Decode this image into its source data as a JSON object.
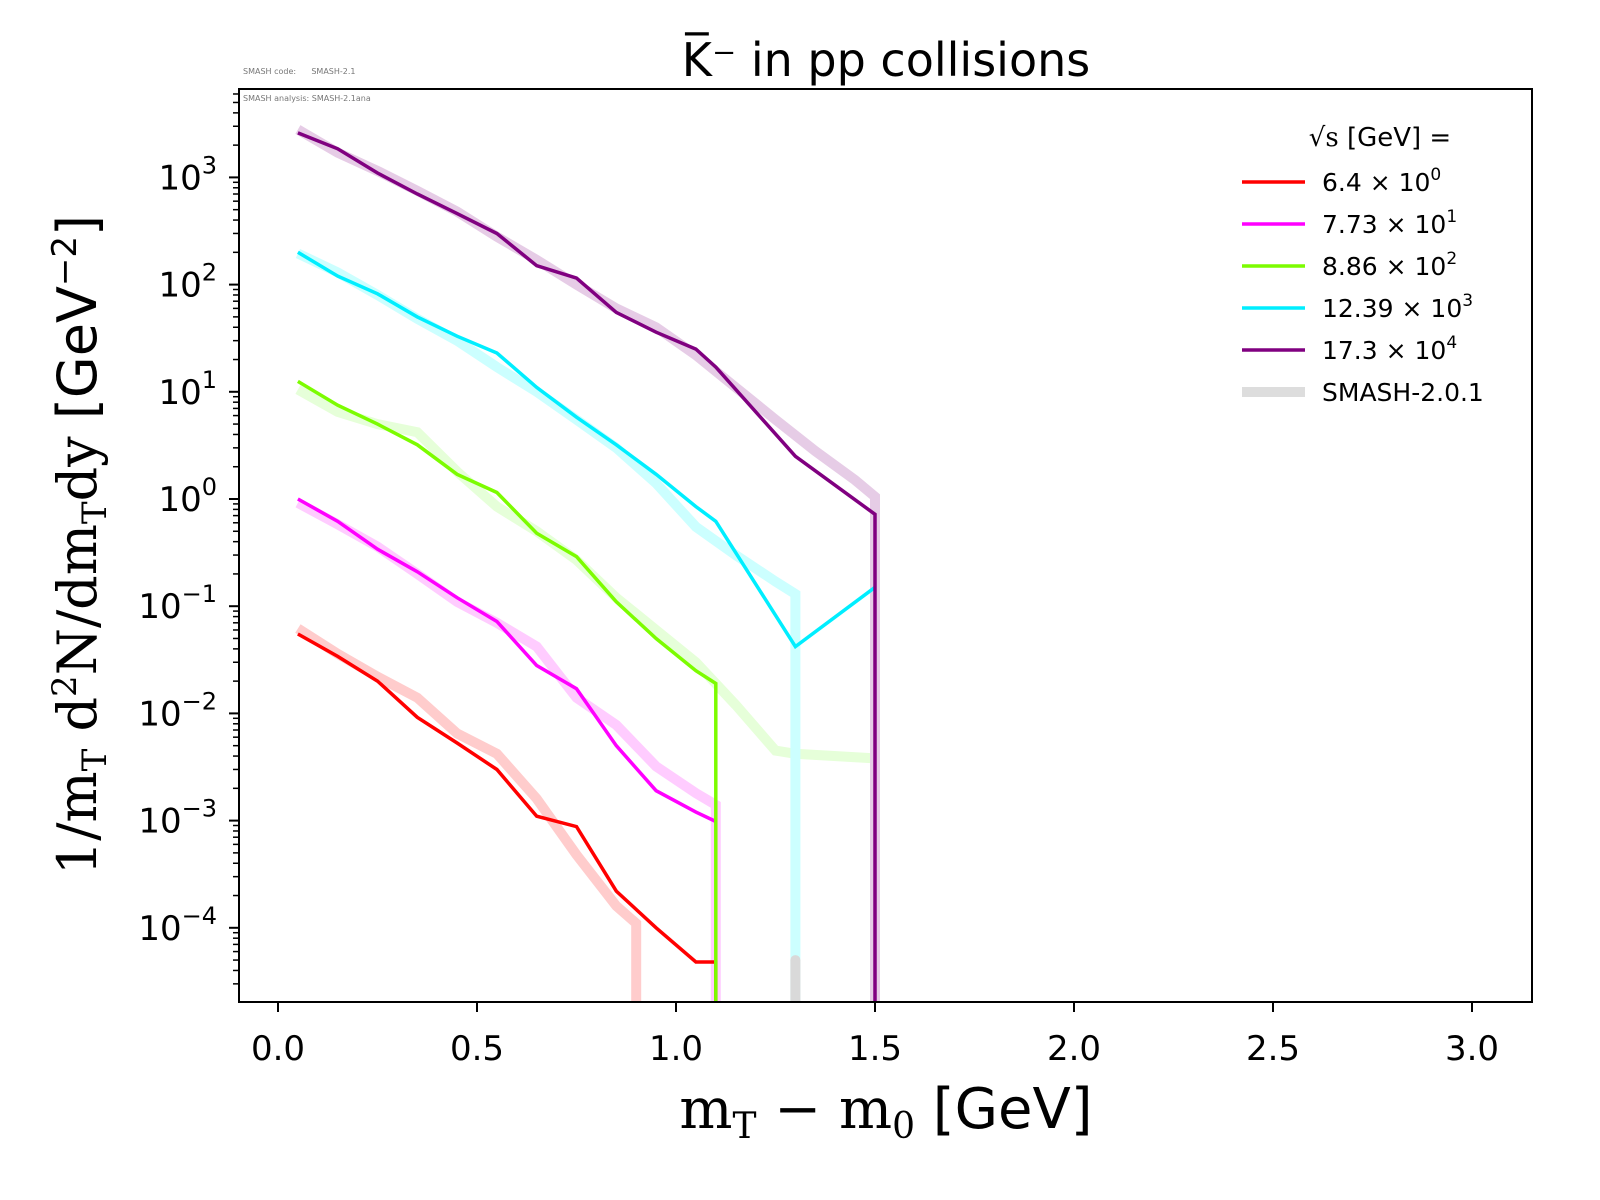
{
  "meta": {
    "code_label": "SMASH code:",
    "code_value": "SMASH-2.1",
    "analysis_label": "SMASH analysis:",
    "analysis_value": "SMASH-2.1ana"
  },
  "chart_data": {
    "type": "line",
    "title": "K̅⁻ in pp collisions",
    "xlabel": "m_T − m_0 [GeV]",
    "xlabel_parts": {
      "m1": "m",
      "sub1": "T",
      "minus": " − ",
      "m2": "m",
      "sub2": "0",
      "unit": " [GeV]"
    },
    "ylabel": "1/m_T d²N/dm_Tdy [GeV⁻²]",
    "ylabel_parts": {
      "a": "1/m",
      "sub_a": "T",
      "b": " d",
      "sup_b": "2",
      "c": "N/dm",
      "sub_c": "T",
      "d": "dy",
      "unit": " [GeV",
      "sup_unit": "−2",
      "close": "]"
    },
    "xlim": [
      -0.1,
      3.15
    ],
    "ylim_log10": [
      -4.75,
      3.8
    ],
    "yscale": "log",
    "grid": false,
    "x_ticks": [
      {
        "value": 0.0,
        "label": "0.0"
      },
      {
        "value": 0.5,
        "label": "0.5"
      },
      {
        "value": 1.0,
        "label": "1.0"
      },
      {
        "value": 1.5,
        "label": "1.5"
      },
      {
        "value": 2.0,
        "label": "2.0"
      },
      {
        "value": 2.5,
        "label": "2.5"
      },
      {
        "value": 3.0,
        "label": "3.0"
      }
    ],
    "y_ticks": [
      {
        "exp": 3,
        "base": "10",
        "sup": "3"
      },
      {
        "exp": 2,
        "base": "10",
        "sup": "2"
      },
      {
        "exp": 1,
        "base": "10",
        "sup": "1"
      },
      {
        "exp": 0,
        "base": "10",
        "sup": "0"
      },
      {
        "exp": -1,
        "base": "10",
        "sup": "−1"
      },
      {
        "exp": -2,
        "base": "10",
        "sup": "−2"
      },
      {
        "exp": -3,
        "base": "10",
        "sup": "−3"
      },
      {
        "exp": -4,
        "base": "10",
        "sup": "−4"
      }
    ],
    "legend": {
      "position": "top-right",
      "title_root": "√s",
      "title_rest": " [GeV] =",
      "entries": [
        {
          "name": "6.4 × 10",
          "sup": "0",
          "color": "#ff0000"
        },
        {
          "name": "7.73 × 10",
          "sup": "1",
          "color": "#ff00ff"
        },
        {
          "name": "8.86 × 10",
          "sup": "2",
          "color": "#7cfc00"
        },
        {
          "name": "12.39 × 10",
          "sup": "3",
          "color": "#00eeff"
        },
        {
          "name": "17.3 × 10",
          "sup": "4",
          "color": "#800080"
        },
        {
          "name": "SMASH-2.0.1",
          "sup": "",
          "color": "#dddddd"
        }
      ]
    },
    "series": [
      {
        "name": "6.4 × 10^0",
        "color": "#ff0000",
        "x": [
          0.05,
          0.15,
          0.25,
          0.35,
          0.45,
          0.55,
          0.65,
          0.75,
          0.85,
          0.95,
          1.05,
          1.1,
          1.1
        ],
        "y": [
          0.055,
          0.034,
          0.02,
          0.0092,
          0.0053,
          0.003,
          0.0011,
          0.00088,
          0.00022,
          0.0001,
          4.8e-05,
          4.8e-05,
          1.7e-05
        ],
        "reference": {
          "color": "#ffcccc",
          "x": [
            0.05,
            0.15,
            0.25,
            0.35,
            0.45,
            0.55,
            0.65,
            0.75,
            0.85,
            0.9,
            0.9
          ],
          "y": [
            0.062,
            0.036,
            0.022,
            0.014,
            0.0065,
            0.0042,
            0.0016,
            0.00048,
            0.00016,
            0.00011,
            1.7e-05
          ]
        }
      },
      {
        "name": "7.73 × 10^1",
        "color": "#ff00ff",
        "x": [
          0.05,
          0.15,
          0.25,
          0.35,
          0.45,
          0.55,
          0.65,
          0.75,
          0.85,
          0.95,
          1.05,
          1.1
        ],
        "y": [
          1.0,
          0.62,
          0.34,
          0.21,
          0.12,
          0.072,
          0.028,
          0.017,
          0.005,
          0.0019,
          0.0012,
          0.00098
        ],
        "reference": {
          "color": "#ffccff",
          "x": [
            0.05,
            0.15,
            0.25,
            0.35,
            0.45,
            0.55,
            0.65,
            0.75,
            0.85,
            0.95,
            1.05,
            1.1,
            1.1
          ],
          "y": [
            0.92,
            0.58,
            0.36,
            0.2,
            0.11,
            0.07,
            0.042,
            0.014,
            0.0078,
            0.0032,
            0.0018,
            0.0014,
            1.7e-05
          ]
        }
      },
      {
        "name": "8.86 × 10^2",
        "color": "#7cfc00",
        "x": [
          0.05,
          0.15,
          0.25,
          0.35,
          0.45,
          0.55,
          0.65,
          0.75,
          0.85,
          0.95,
          1.05,
          1.1,
          1.1
        ],
        "y": [
          12.5,
          7.5,
          5.0,
          3.2,
          1.7,
          1.15,
          0.48,
          0.29,
          0.11,
          0.05,
          0.025,
          0.019,
          1.7e-05
        ],
        "reference": {
          "color": "#e6ffd9",
          "x": [
            0.05,
            0.15,
            0.25,
            0.35,
            0.45,
            0.55,
            0.65,
            0.75,
            0.85,
            0.95,
            1.05,
            1.15,
            1.25,
            1.3,
            1.5
          ],
          "y": [
            10.5,
            6.5,
            5.0,
            4.2,
            1.8,
            0.85,
            0.5,
            0.27,
            0.12,
            0.06,
            0.03,
            0.012,
            0.0045,
            0.0042,
            0.0038
          ]
        }
      },
      {
        "name": "12.39 × 10^3",
        "color": "#00eeff",
        "x": [
          0.05,
          0.15,
          0.25,
          0.35,
          0.45,
          0.55,
          0.65,
          0.75,
          0.85,
          0.95,
          1.05,
          1.1,
          1.3,
          1.5
        ],
        "y": [
          200,
          120,
          82,
          50,
          33,
          23,
          11,
          5.8,
          3.2,
          1.7,
          0.85,
          0.62,
          0.042,
          0.15
        ],
        "reference": {
          "color": "#ccffff",
          "x": [
            0.05,
            0.15,
            0.25,
            0.35,
            0.45,
            0.55,
            0.65,
            0.75,
            0.85,
            0.95,
            1.05,
            1.15,
            1.25,
            1.3,
            1.3
          ],
          "y": [
            195,
            130,
            80,
            48,
            30,
            17,
            10,
            5.5,
            3.0,
            1.4,
            0.55,
            0.3,
            0.17,
            0.13,
            1.7e-05
          ]
        }
      },
      {
        "name": "17.3 × 10^4",
        "color": "#800080",
        "x": [
          0.05,
          0.15,
          0.25,
          0.35,
          0.45,
          0.55,
          0.65,
          0.75,
          0.85,
          0.95,
          1.05,
          1.1,
          1.3,
          1.5,
          1.5
        ],
        "y": [
          2600,
          1850,
          1100,
          700,
          460,
          300,
          150,
          115,
          55,
          36,
          25,
          17,
          2.5,
          0.72,
          1.7e-05
        ],
        "reference": {
          "color": "#e6cce6",
          "x": [
            0.05,
            0.15,
            0.25,
            0.35,
            0.45,
            0.55,
            0.65,
            0.75,
            0.85,
            0.95,
            1.05,
            1.15,
            1.25,
            1.35,
            1.45,
            1.5,
            1.5
          ],
          "y": [
            2800,
            1700,
            1150,
            750,
            480,
            280,
            170,
            100,
            60,
            40,
            22,
            11,
            5.5,
            2.8,
            1.5,
            1.05,
            1.7e-05
          ]
        }
      }
    ],
    "smash_201_stub": {
      "color": "#d9d9d9",
      "x": 1.3,
      "y_top": 5e-05
    }
  }
}
